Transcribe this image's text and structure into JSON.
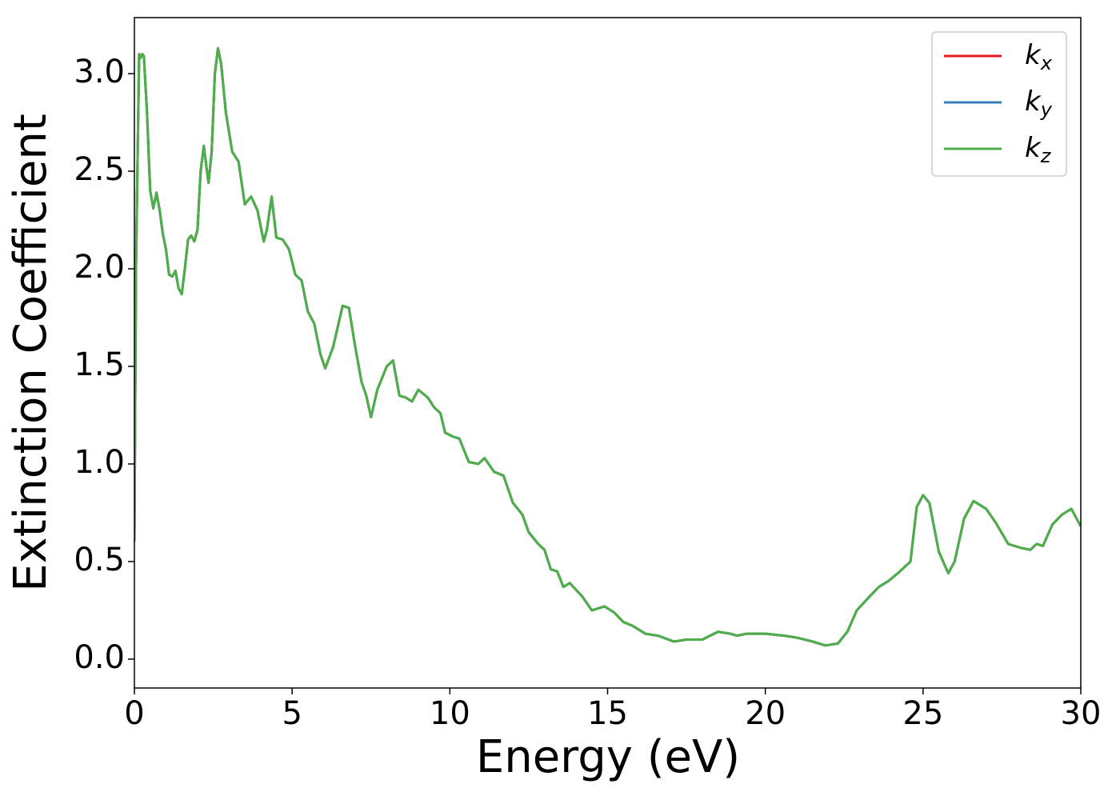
{
  "chart_data": {
    "type": "line",
    "xlabel": "Energy (eV)",
    "ylabel": "Extinction Coefficient",
    "x": [
      0,
      0.05,
      0.15,
      0.2,
      0.25,
      0.3,
      0.4,
      0.5,
      0.6,
      0.7,
      0.8,
      0.9,
      1.0,
      1.1,
      1.2,
      1.3,
      1.4,
      1.5,
      1.6,
      1.7,
      1.8,
      1.9,
      2.0,
      2.1,
      2.2,
      2.3,
      2.35,
      2.45,
      2.55,
      2.65,
      2.75,
      2.9,
      3.1,
      3.3,
      3.5,
      3.7,
      3.9,
      4.1,
      4.2,
      4.35,
      4.5,
      4.7,
      4.9,
      5.1,
      5.3,
      5.5,
      5.7,
      5.9,
      6.05,
      6.3,
      6.6,
      6.8,
      7.0,
      7.2,
      7.35,
      7.5,
      7.7,
      8.0,
      8.2,
      8.4,
      8.6,
      8.8,
      9.0,
      9.3,
      9.5,
      9.7,
      9.85,
      10.1,
      10.3,
      10.6,
      10.9,
      11.1,
      11.4,
      11.7,
      12.0,
      12.3,
      12.5,
      12.8,
      13.0,
      13.2,
      13.4,
      13.6,
      13.8,
      14.2,
      14.5,
      14.9,
      15.2,
      15.5,
      15.8,
      16.2,
      16.6,
      17.1,
      17.5,
      18.0,
      18.5,
      18.9,
      19.1,
      19.4,
      20.0,
      20.6,
      21.0,
      21.5,
      21.9,
      22.3,
      22.6,
      22.9,
      23.3,
      23.6,
      23.9,
      24.2,
      24.6,
      24.8,
      25.0,
      25.2,
      25.5,
      25.8,
      26.0,
      26.3,
      26.6,
      27.0,
      27.3,
      27.7,
      28.1,
      28.4,
      28.6,
      28.8,
      29.1,
      29.4,
      29.7,
      30.0
    ],
    "series": [
      {
        "name": "kx",
        "color": "#e41a1c",
        "values": [
          0.6,
          2.0,
          3.1,
          3.08,
          3.1,
          3.09,
          2.8,
          2.4,
          2.31,
          2.39,
          2.3,
          2.18,
          2.1,
          1.97,
          1.96,
          1.99,
          1.9,
          1.87,
          2.0,
          2.15,
          2.17,
          2.14,
          2.2,
          2.5,
          2.63,
          2.5,
          2.44,
          2.6,
          3.0,
          3.13,
          3.05,
          2.8,
          2.6,
          2.55,
          2.33,
          2.37,
          2.3,
          2.14,
          2.2,
          2.37,
          2.16,
          2.15,
          2.1,
          1.97,
          1.94,
          1.78,
          1.72,
          1.56,
          1.49,
          1.6,
          1.81,
          1.8,
          1.6,
          1.42,
          1.35,
          1.24,
          1.38,
          1.5,
          1.53,
          1.35,
          1.34,
          1.32,
          1.38,
          1.34,
          1.29,
          1.26,
          1.16,
          1.14,
          1.13,
          1.01,
          1.0,
          1.03,
          0.96,
          0.94,
          0.8,
          0.74,
          0.65,
          0.59,
          0.56,
          0.46,
          0.45,
          0.37,
          0.39,
          0.32,
          0.25,
          0.27,
          0.24,
          0.19,
          0.17,
          0.13,
          0.12,
          0.09,
          0.1,
          0.1,
          0.14,
          0.13,
          0.12,
          0.13,
          0.13,
          0.12,
          0.11,
          0.09,
          0.07,
          0.08,
          0.14,
          0.25,
          0.32,
          0.37,
          0.4,
          0.44,
          0.5,
          0.78,
          0.84,
          0.8,
          0.55,
          0.44,
          0.5,
          0.72,
          0.81,
          0.77,
          0.7,
          0.59,
          0.57,
          0.56,
          0.59,
          0.58,
          0.69,
          0.74,
          0.77,
          0.68
        ]
      },
      {
        "name": "ky",
        "color": "#377eb8",
        "values": [
          0.6,
          2.0,
          3.1,
          3.08,
          3.1,
          3.09,
          2.8,
          2.4,
          2.31,
          2.39,
          2.3,
          2.18,
          2.1,
          1.97,
          1.96,
          1.99,
          1.9,
          1.87,
          2.0,
          2.15,
          2.17,
          2.14,
          2.2,
          2.5,
          2.63,
          2.5,
          2.44,
          2.6,
          3.0,
          3.13,
          3.05,
          2.8,
          2.6,
          2.55,
          2.33,
          2.37,
          2.3,
          2.14,
          2.2,
          2.37,
          2.16,
          2.15,
          2.1,
          1.97,
          1.94,
          1.78,
          1.72,
          1.56,
          1.49,
          1.6,
          1.81,
          1.8,
          1.6,
          1.42,
          1.35,
          1.24,
          1.38,
          1.5,
          1.53,
          1.35,
          1.34,
          1.32,
          1.38,
          1.34,
          1.29,
          1.26,
          1.16,
          1.14,
          1.13,
          1.01,
          1.0,
          1.03,
          0.96,
          0.94,
          0.8,
          0.74,
          0.65,
          0.59,
          0.56,
          0.46,
          0.45,
          0.37,
          0.39,
          0.32,
          0.25,
          0.27,
          0.24,
          0.19,
          0.17,
          0.13,
          0.12,
          0.09,
          0.1,
          0.1,
          0.14,
          0.13,
          0.12,
          0.13,
          0.13,
          0.12,
          0.11,
          0.09,
          0.07,
          0.08,
          0.14,
          0.25,
          0.32,
          0.37,
          0.4,
          0.44,
          0.5,
          0.78,
          0.84,
          0.8,
          0.55,
          0.44,
          0.5,
          0.72,
          0.81,
          0.77,
          0.7,
          0.59,
          0.57,
          0.56,
          0.59,
          0.58,
          0.69,
          0.74,
          0.77,
          0.68
        ]
      },
      {
        "name": "kz",
        "color": "#4daf4a",
        "values": [
          0.6,
          2.0,
          3.1,
          3.08,
          3.1,
          3.09,
          2.8,
          2.4,
          2.31,
          2.39,
          2.3,
          2.18,
          2.1,
          1.97,
          1.96,
          1.99,
          1.9,
          1.87,
          2.0,
          2.15,
          2.17,
          2.14,
          2.2,
          2.5,
          2.63,
          2.5,
          2.44,
          2.6,
          3.0,
          3.13,
          3.05,
          2.8,
          2.6,
          2.55,
          2.33,
          2.37,
          2.3,
          2.14,
          2.2,
          2.37,
          2.16,
          2.15,
          2.1,
          1.97,
          1.94,
          1.78,
          1.72,
          1.56,
          1.49,
          1.6,
          1.81,
          1.8,
          1.6,
          1.42,
          1.35,
          1.24,
          1.38,
          1.5,
          1.53,
          1.35,
          1.34,
          1.32,
          1.38,
          1.34,
          1.29,
          1.26,
          1.16,
          1.14,
          1.13,
          1.01,
          1.0,
          1.03,
          0.96,
          0.94,
          0.8,
          0.74,
          0.65,
          0.59,
          0.56,
          0.46,
          0.45,
          0.37,
          0.39,
          0.32,
          0.25,
          0.27,
          0.24,
          0.19,
          0.17,
          0.13,
          0.12,
          0.09,
          0.1,
          0.1,
          0.14,
          0.13,
          0.12,
          0.13,
          0.13,
          0.12,
          0.11,
          0.09,
          0.07,
          0.08,
          0.14,
          0.25,
          0.32,
          0.37,
          0.4,
          0.44,
          0.5,
          0.78,
          0.84,
          0.8,
          0.55,
          0.44,
          0.5,
          0.72,
          0.81,
          0.77,
          0.7,
          0.59,
          0.57,
          0.56,
          0.59,
          0.58,
          0.69,
          0.74,
          0.77,
          0.68
        ]
      }
    ],
    "xlim": [
      0,
      30
    ],
    "xticks": [
      0,
      5,
      10,
      15,
      20,
      25,
      30
    ],
    "ylim": [
      -0.148,
      3.287
    ],
    "yticks": [
      {
        "value": 0,
        "label": "0.0"
      },
      0.5,
      {
        "value": 1,
        "label": "1.0"
      },
      1.5,
      {
        "value": 2,
        "label": "2.0"
      },
      2.5,
      {
        "value": 3,
        "label": "3.0"
      }
    ],
    "legend": "upper right",
    "grid": false
  }
}
